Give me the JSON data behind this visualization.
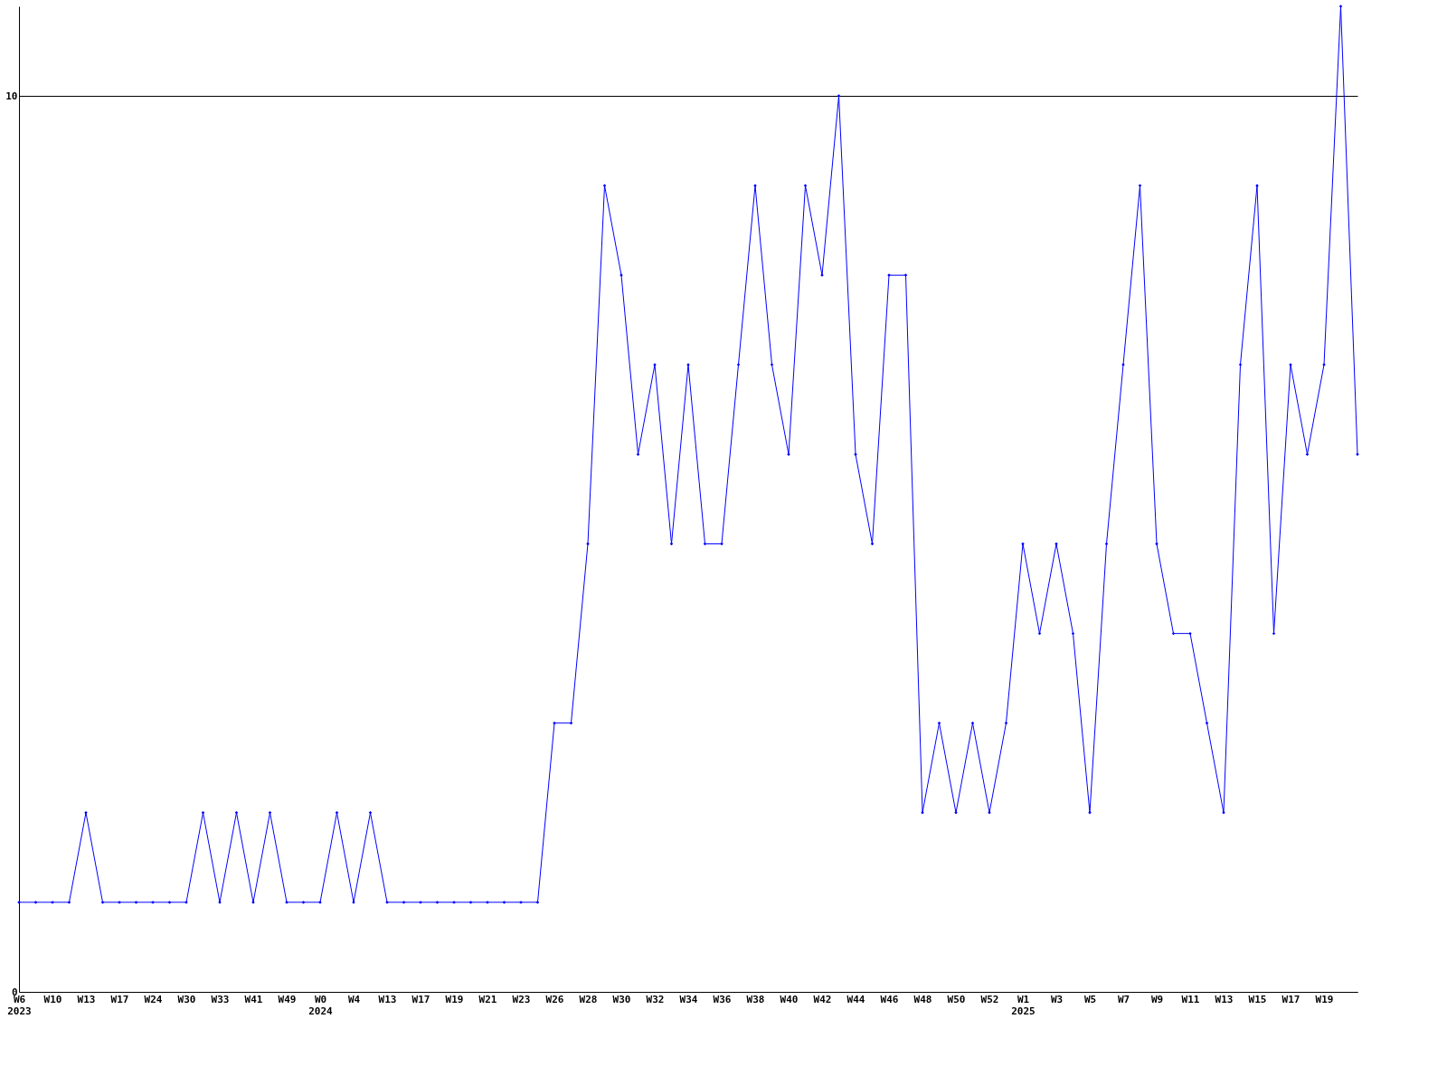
{
  "chart_data": {
    "type": "line",
    "categories": [
      "W6\n2023",
      null,
      "W10",
      null,
      "W13",
      null,
      "W17",
      null,
      "W24",
      null,
      "W30",
      null,
      "W33",
      null,
      "W41",
      null,
      "W49",
      null,
      "W0\n2024",
      null,
      "W4",
      null,
      "W13",
      null,
      "W17",
      null,
      "W19",
      null,
      "W21",
      null,
      "W23",
      null,
      "W26",
      null,
      "W28",
      null,
      "W30",
      null,
      "W32",
      null,
      "W34",
      null,
      "W36",
      null,
      "W38",
      null,
      "W40",
      null,
      "W42",
      null,
      "W44",
      null,
      "W46",
      null,
      "W48",
      null,
      "W50",
      null,
      "W52",
      null,
      "W1\n2025",
      null,
      "W3",
      null,
      "W5",
      null,
      "W7",
      null,
      "W9",
      null,
      "W11",
      null,
      "W13",
      null,
      "W15",
      null,
      "W17",
      null,
      "W19",
      null,
      null
    ],
    "series": [
      {
        "color": "#0000ff",
        "values": [
          1,
          1,
          1,
          1,
          2,
          1,
          1,
          1,
          1,
          1,
          1,
          2,
          1,
          2,
          1,
          2,
          1,
          1,
          1,
          2,
          1,
          2,
          1,
          1,
          1,
          1,
          1,
          1,
          1,
          1,
          1,
          1,
          3,
          3,
          5,
          9,
          8,
          6,
          7,
          5,
          7,
          5,
          5,
          7,
          9,
          7,
          6,
          9,
          8,
          10,
          6,
          5,
          8,
          8,
          2,
          3,
          2,
          3,
          2,
          3,
          5,
          4,
          5,
          4,
          2,
          5,
          7,
          9,
          5,
          4,
          4,
          3,
          2,
          7,
          9,
          4,
          7,
          6,
          7,
          11,
          6
        ]
      }
    ],
    "ylim": [
      0,
      11
    ],
    "yticks": [
      0,
      10
    ],
    "grid": "y",
    "marker": "diamond",
    "line_style": "solid"
  }
}
